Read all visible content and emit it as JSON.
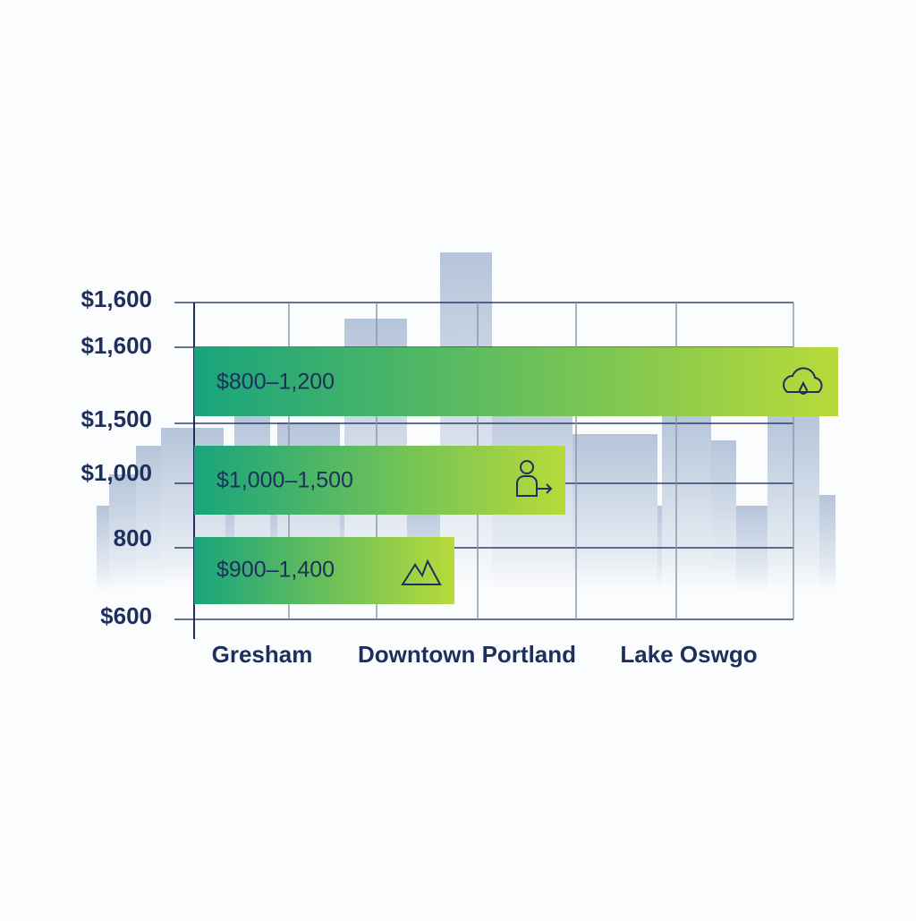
{
  "axis_labels": [
    "$1,600",
    "$1,600",
    "$1,500",
    "$1,000",
    "800",
    "$600"
  ],
  "bars": [
    {
      "label": "$800–1,200"
    },
    {
      "label": "$1,000–1,500"
    },
    {
      "label": "$900–1,400"
    }
  ],
  "categories": [
    "Gresham",
    "Downtown Portland",
    "Lake Oswgo"
  ]
}
